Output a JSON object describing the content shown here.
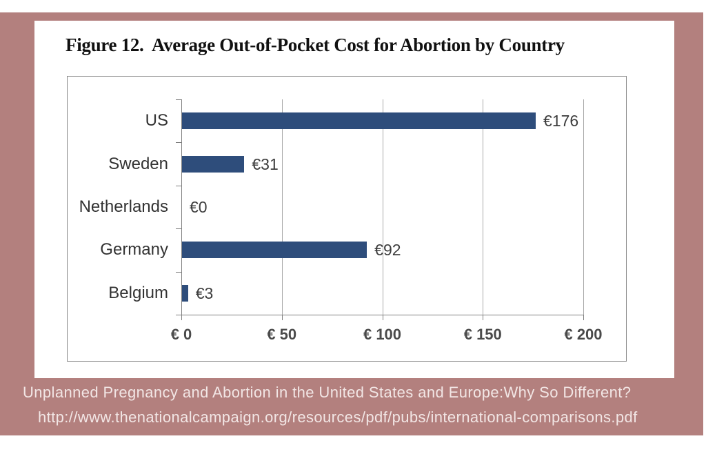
{
  "page": {
    "title": "Figure 12.  Average Out-of-Pocket Cost for Abortion by Country",
    "caption_line1": "Unplanned Pregnancy and Abortion in the United States and Europe:Why So Different?",
    "caption_line2": "http://www.thenationalcampaign.org/resources/pdf/pubs/international-comparisons.pdf"
  },
  "colors": {
    "frame": "#b3807e",
    "bar": "#2e4d7b",
    "gridline": "#a8a8a8",
    "axis": "#7f7f7f",
    "caption_text": "#f2e6e5"
  },
  "chart_data": {
    "type": "bar",
    "orientation": "horizontal",
    "title": "Figure 12.  Average Out-of-Pocket Cost for Abortion by Country",
    "categories": [
      "US",
      "Sweden",
      "Netherlands",
      "Germany",
      "Belgium"
    ],
    "values": [
      176,
      31,
      0,
      92,
      3
    ],
    "data_labels": [
      "€176",
      "€31",
      "€0",
      "€92",
      "€3"
    ],
    "x_ticks": [
      0,
      50,
      100,
      150,
      200
    ],
    "x_tick_labels": [
      "€ 0",
      "€ 50",
      "€ 100",
      "€ 150",
      "€ 200"
    ],
    "xlim": [
      0,
      200
    ],
    "xlabel": "",
    "ylabel": "",
    "currency": "EUR",
    "grid": true,
    "legend": false
  }
}
